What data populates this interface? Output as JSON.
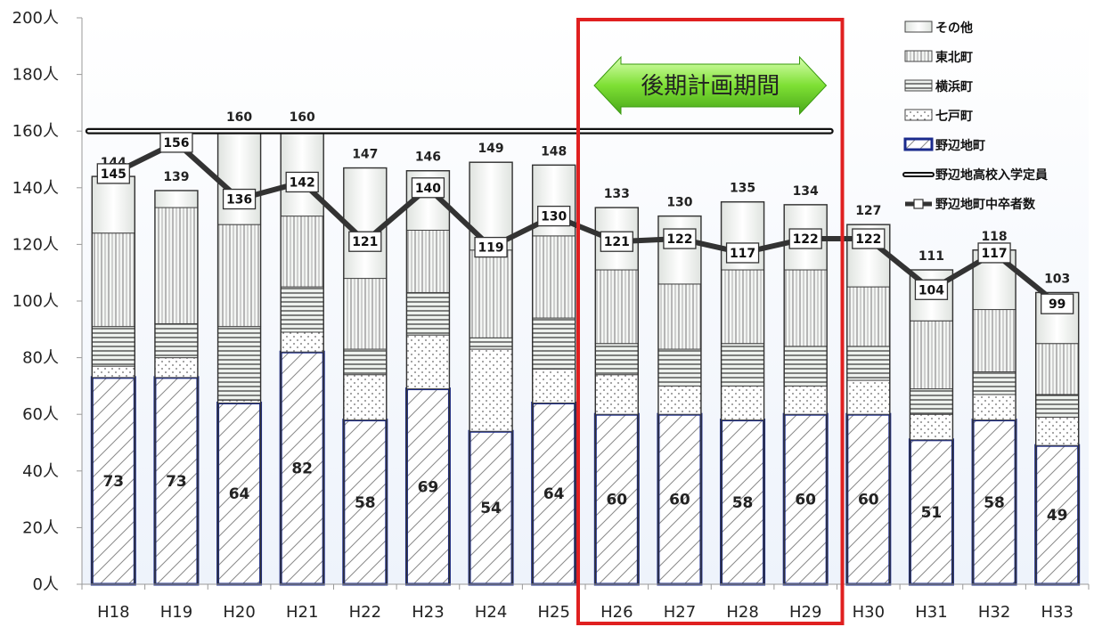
{
  "chart_data": {
    "type": "bar",
    "stacked": true,
    "categories": [
      "H18",
      "H19",
      "H20",
      "H21",
      "H22",
      "H23",
      "H24",
      "H25",
      "H26",
      "H27",
      "H28",
      "H29",
      "H30",
      "H31",
      "H32",
      "H33"
    ],
    "y_unit": "人",
    "ylim": [
      0,
      200
    ],
    "ytick_labels": [
      "0人",
      "20人",
      "40人",
      "60人",
      "80人",
      "100人",
      "120人",
      "140人",
      "160人",
      "180人",
      "200人"
    ],
    "ytick_values": [
      0,
      20,
      40,
      60,
      80,
      100,
      120,
      140,
      160,
      180,
      200
    ],
    "grid": false,
    "legend_position": "top-right",
    "series": [
      {
        "name": "野辺地町",
        "values": [
          73,
          73,
          64,
          82,
          58,
          69,
          54,
          64,
          60,
          60,
          58,
          60,
          60,
          51,
          58,
          49
        ],
        "color": "#1a2a8c"
      },
      {
        "name": "七戸町",
        "values": [
          4,
          7,
          1,
          7,
          16,
          19,
          29,
          12,
          14,
          10,
          12,
          10,
          12,
          9,
          9,
          10
        ]
      },
      {
        "name": "横浜町",
        "values": [
          14,
          12,
          26,
          16,
          9,
          15,
          4,
          18,
          11,
          13,
          15,
          14,
          12,
          9,
          8,
          8
        ]
      },
      {
        "name": "東北町",
        "values": [
          33,
          41,
          36,
          25,
          25,
          22,
          31,
          29,
          26,
          23,
          26,
          27,
          21,
          24,
          22,
          18
        ]
      },
      {
        "name": "その他",
        "values": [
          20,
          6,
          33,
          30,
          39,
          21,
          31,
          25,
          22,
          24,
          24,
          23,
          22,
          18,
          21,
          18
        ]
      }
    ],
    "totals": [
      144,
      139,
      160,
      160,
      147,
      146,
      149,
      148,
      133,
      130,
      135,
      134,
      127,
      111,
      118,
      103
    ],
    "line_series": [
      {
        "name": "野辺地高校入学定員",
        "values": [
          160,
          160,
          160,
          160,
          160,
          160,
          160,
          160,
          160,
          160,
          160,
          160
        ],
        "x_range": [
          "H18",
          "H29"
        ]
      },
      {
        "name": "野辺地町中卒者数",
        "values": [
          145,
          156,
          136,
          142,
          121,
          140,
          119,
          130,
          121,
          122,
          117,
          122,
          122,
          104,
          117,
          99
        ],
        "color": "#333333"
      }
    ],
    "annotation": {
      "text": "後期計画期間",
      "range": [
        "H26",
        "H29"
      ],
      "highlight_color": "#e02020",
      "arrow_color": "#66dd22"
    }
  }
}
